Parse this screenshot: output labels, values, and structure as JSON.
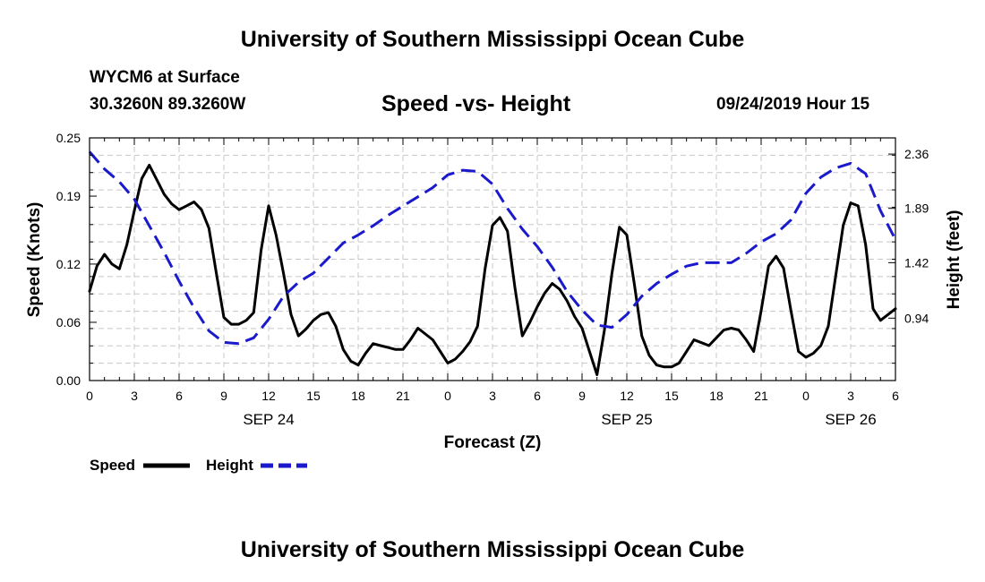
{
  "header": {
    "title": "University of Southern Mississippi Ocean Cube",
    "station": "WYCM6 at Surface",
    "coords": "30.3260N 89.3260W",
    "chart_title": "Speed -vs- Height",
    "datetime": "09/24/2019 Hour 15"
  },
  "footer": {
    "title": "University of Southern Mississippi Ocean Cube"
  },
  "colors": {
    "speed": "#000000",
    "height": "#1a1acc",
    "grid": "#c8c8c8"
  },
  "chart_data": {
    "type": "line",
    "title": "Speed -vs- Height",
    "xlabel": "Forecast (Z)",
    "ylabel_left": "Speed (Knots)",
    "ylabel_right": "Height (feet)",
    "xlim": [
      0,
      54
    ],
    "ylim_left": [
      0,
      0.25
    ],
    "ylim_right": [
      0.4,
      2.5
    ],
    "x_ticks": [
      0,
      3,
      6,
      9,
      12,
      15,
      18,
      21,
      24,
      27,
      30,
      33,
      36,
      39,
      42,
      45,
      48,
      51,
      54
    ],
    "x_tick_labels": [
      "0",
      "3",
      "6",
      "9",
      "12",
      "15",
      "18",
      "21",
      "0",
      "3",
      "6",
      "9",
      "12",
      "15",
      "18",
      "21",
      "0",
      "3",
      "6"
    ],
    "date_labels": [
      {
        "x": 12,
        "label": "SEP 24"
      },
      {
        "x": 36,
        "label": "SEP 25"
      },
      {
        "x": 51,
        "label": "SEP 26"
      }
    ],
    "y_left_ticks": [
      0.0,
      0.06,
      0.12,
      0.19,
      0.25
    ],
    "y_left_tick_labels": [
      "0.00",
      "0.06",
      "0.12",
      "0.19",
      "0.25"
    ],
    "y_right_ticks": [
      0.94,
      1.42,
      1.89,
      2.36
    ],
    "y_right_tick_labels": [
      "0.94",
      "1.42",
      "1.89",
      "2.36"
    ],
    "grid": true,
    "legend_position": "bottom-left",
    "series": [
      {
        "name": "Speed",
        "axis": "left",
        "style": "solid",
        "x": [
          0,
          0.5,
          1,
          1.5,
          2,
          2.5,
          3,
          3.5,
          4,
          4.5,
          5,
          5.5,
          6,
          6.5,
          7,
          7.5,
          8,
          8.5,
          9,
          9.5,
          10,
          10.5,
          11,
          11.5,
          12,
          12.5,
          13,
          13.5,
          14,
          14.5,
          15,
          15.5,
          16,
          16.5,
          17,
          17.5,
          18,
          18.5,
          19,
          19.5,
          20,
          20.5,
          21,
          21.5,
          22,
          22.5,
          23,
          23.5,
          24,
          24.5,
          25,
          25.5,
          26,
          26.5,
          27,
          27.5,
          28,
          28.5,
          29,
          29.5,
          30,
          30.5,
          31,
          31.5,
          32,
          32.5,
          33,
          33.5,
          34,
          34.5,
          35,
          35.5,
          36,
          36.5,
          37,
          37.5,
          38,
          38.5,
          39,
          39.5,
          40,
          40.5,
          41,
          41.5,
          42,
          42.5,
          43,
          43.5,
          44,
          44.5,
          45,
          45.5,
          46,
          46.5,
          47,
          47.5,
          48,
          48.5,
          49,
          49.5,
          50,
          50.5,
          51,
          51.5,
          52,
          52.5,
          53,
          53.5,
          54
        ],
        "values": [
          0.092,
          0.118,
          0.13,
          0.12,
          0.115,
          0.14,
          0.175,
          0.208,
          0.222,
          0.207,
          0.192,
          0.182,
          0.176,
          0.18,
          0.184,
          0.176,
          0.157,
          0.11,
          0.065,
          0.058,
          0.058,
          0.062,
          0.07,
          0.135,
          0.18,
          0.15,
          0.11,
          0.068,
          0.046,
          0.053,
          0.062,
          0.068,
          0.07,
          0.056,
          0.032,
          0.02,
          0.016,
          0.028,
          0.038,
          0.036,
          0.034,
          0.032,
          0.032,
          0.042,
          0.054,
          0.048,
          0.042,
          0.03,
          0.018,
          0.022,
          0.03,
          0.04,
          0.056,
          0.115,
          0.16,
          0.168,
          0.154,
          0.096,
          0.046,
          0.06,
          0.076,
          0.09,
          0.1,
          0.094,
          0.082,
          0.066,
          0.054,
          0.03,
          0.006,
          0.052,
          0.11,
          0.158,
          0.15,
          0.1,
          0.046,
          0.026,
          0.016,
          0.014,
          0.014,
          0.018,
          0.03,
          0.042,
          0.039,
          0.036,
          0.044,
          0.052,
          0.054,
          0.052,
          0.042,
          0.03,
          0.072,
          0.118,
          0.128,
          0.116,
          0.072,
          0.03,
          0.024,
          0.028,
          0.036,
          0.056,
          0.108,
          0.16,
          0.183,
          0.18,
          0.14,
          0.074,
          0.062,
          0.068,
          0.074
        ]
      },
      {
        "name": "Height",
        "axis": "right",
        "style": "dashed",
        "x": [
          0,
          1,
          2,
          3,
          4,
          5,
          6,
          7,
          8,
          9,
          10,
          11,
          12,
          13,
          14,
          15,
          16,
          17,
          18,
          19,
          20,
          21,
          22,
          23,
          24,
          25,
          26,
          27,
          28,
          29,
          30,
          31,
          32,
          33,
          34,
          35,
          36,
          37,
          38,
          39,
          40,
          41,
          42,
          43,
          44,
          45,
          46,
          47,
          48,
          49,
          50,
          51,
          52,
          53,
          54
        ],
        "values": [
          2.38,
          2.23,
          2.12,
          1.97,
          1.74,
          1.51,
          1.26,
          1.03,
          0.83,
          0.73,
          0.72,
          0.77,
          0.93,
          1.13,
          1.25,
          1.33,
          1.46,
          1.59,
          1.66,
          1.74,
          1.83,
          1.91,
          1.99,
          2.07,
          2.18,
          2.22,
          2.21,
          2.1,
          1.89,
          1.71,
          1.56,
          1.38,
          1.17,
          1.01,
          0.88,
          0.86,
          0.97,
          1.13,
          1.24,
          1.32,
          1.39,
          1.42,
          1.42,
          1.42,
          1.5,
          1.6,
          1.67,
          1.79,
          2.02,
          2.16,
          2.24,
          2.28,
          2.19,
          1.87,
          1.62
        ]
      }
    ]
  }
}
